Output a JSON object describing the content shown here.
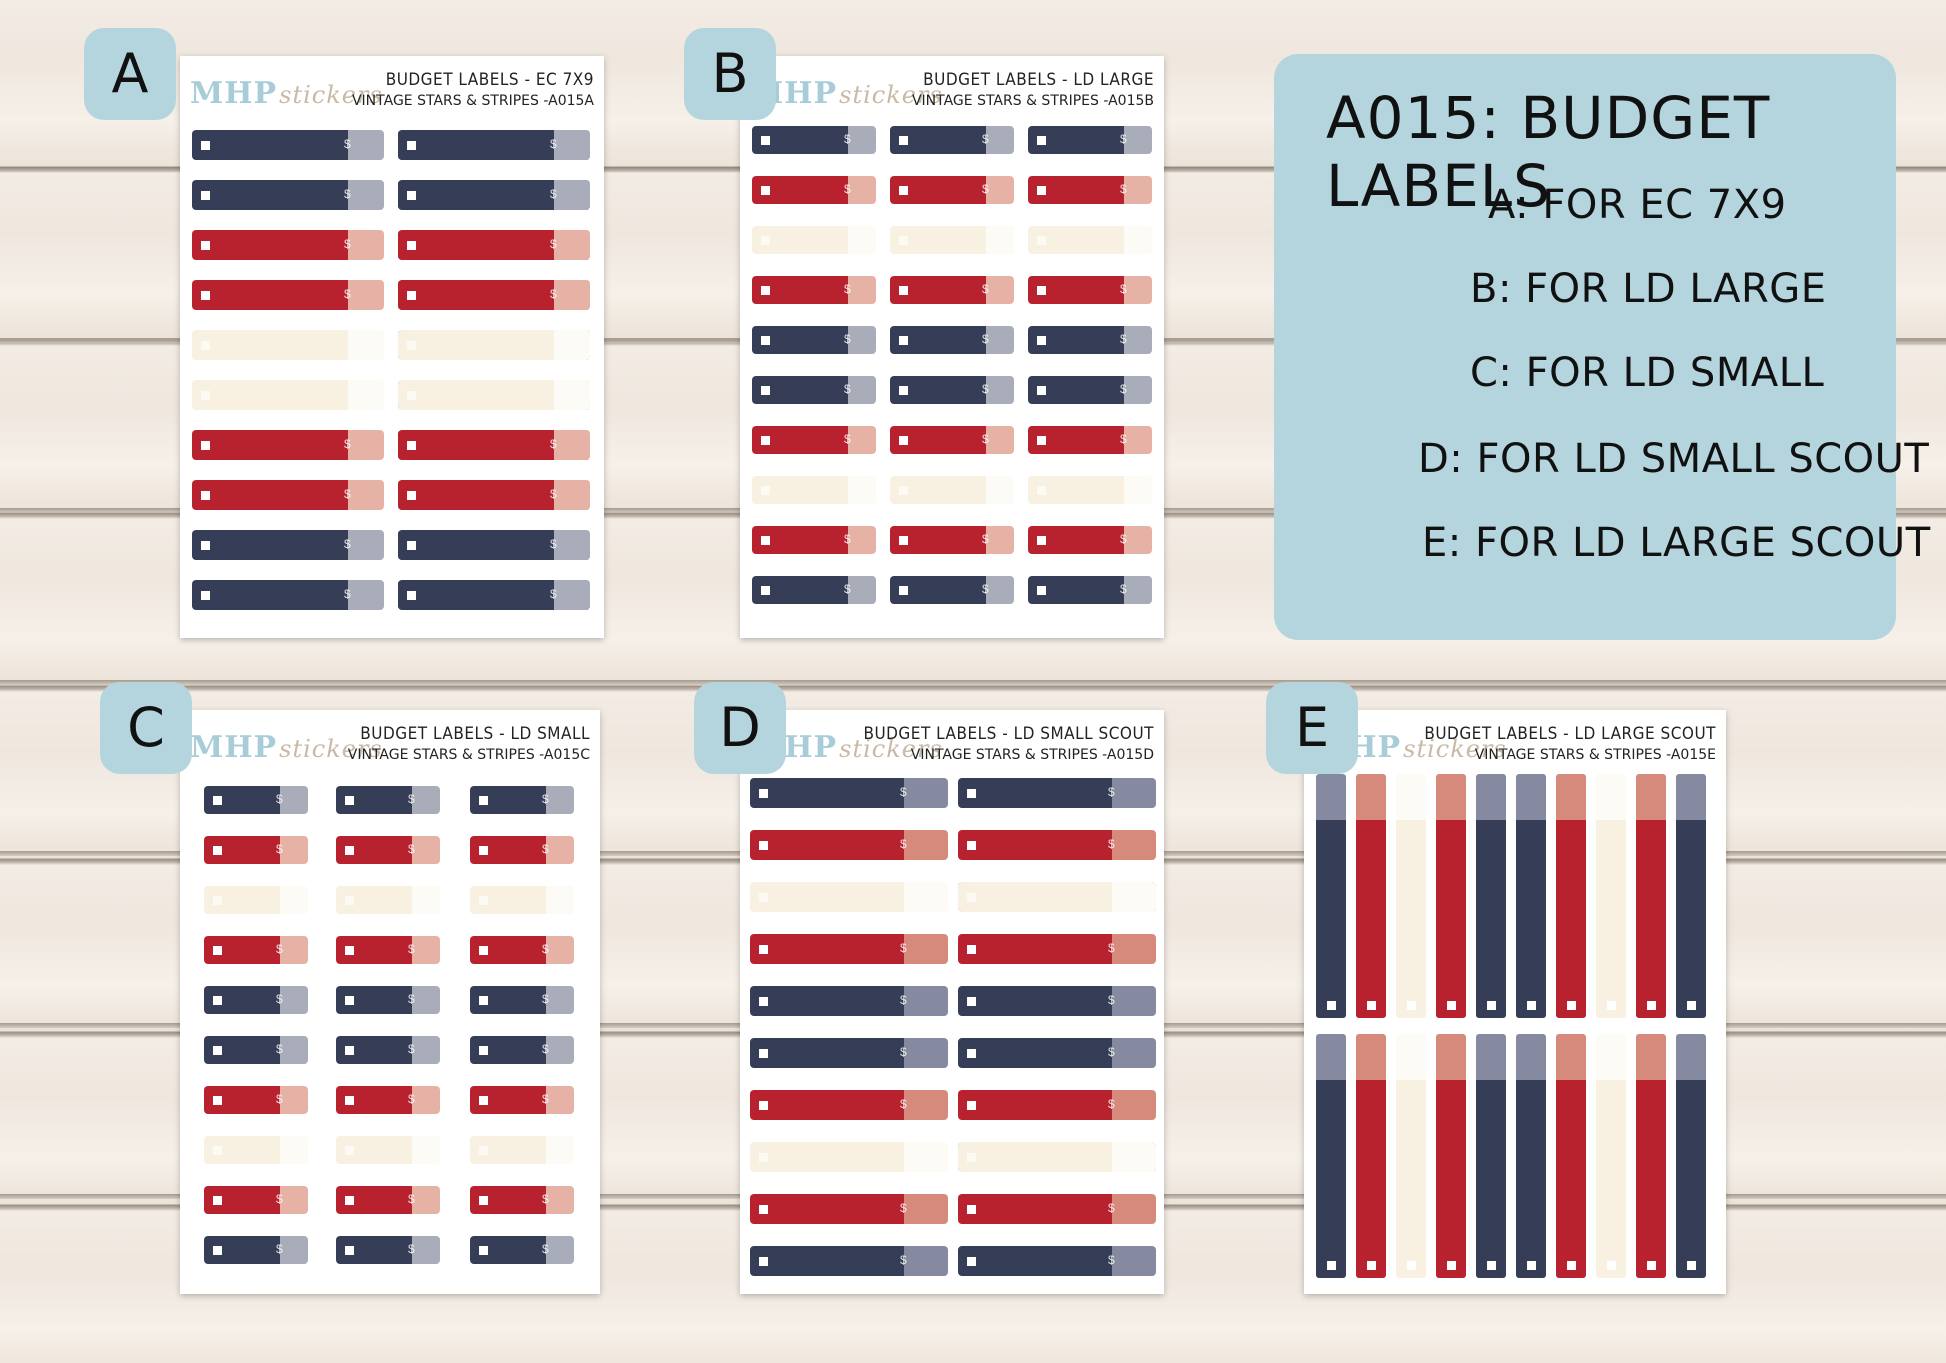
{
  "sheets": [
    {
      "badge": "A",
      "title": "BUDGET LABELS - EC 7X9",
      "subtitle": "VINTAGE STARS & STRIPES -A015A",
      "brand": "MHP",
      "brand_script": "stickers"
    },
    {
      "badge": "B",
      "title": "BUDGET LABELS - LD LARGE",
      "subtitle": "VINTAGE STARS & STRIPES -A015B",
      "brand": "MHP",
      "brand_script": "stickers"
    },
    {
      "badge": "C",
      "title": "BUDGET LABELS - LD SMALL",
      "subtitle": "VINTAGE STARS & STRIPES -A015C",
      "brand": "MHP",
      "brand_script": "stickers"
    },
    {
      "badge": "D",
      "title": "BUDGET LABELS - LD SMALL SCOUT",
      "subtitle": "VINTAGE STARS & STRIPES -A015D",
      "brand": "MHP",
      "brand_script": "stickers"
    },
    {
      "badge": "E",
      "title": "BUDGET LABELS - LD LARGE SCOUT",
      "subtitle": "VINTAGE STARS & STRIPES -A015E",
      "brand": "MHP",
      "brand_script": "stickers"
    }
  ],
  "info": {
    "title": "A015: BUDGET LABELS",
    "lines": [
      "A: FOR EC 7X9",
      "B: FOR LD LARGE",
      "C: FOR LD SMALL",
      "D: FOR LD SMALL SCOUT",
      "E: FOR LD LARGE SCOUT"
    ]
  },
  "label_symbol": "$",
  "colors": {
    "navy": "#363d56",
    "navy_tab": "#a9acb9",
    "red": "#b7222e",
    "red_tab": "#e6b2a5",
    "cream": "#f8f1e2",
    "cream_tab": "#fdfbf6",
    "navy_tab_d": "#868aa0",
    "red_tab_d": "#d68a7b",
    "badge": "#b5d5de"
  },
  "patterns": {
    "A_left": [
      "navy",
      "navy",
      "red",
      "red",
      "cream",
      "cream",
      "red",
      "red",
      "navy",
      "navy"
    ],
    "A_right": [
      "navy*",
      "navy*",
      "red*",
      "red*",
      "cream*",
      "cream*",
      "red*",
      "red*",
      "navy*",
      "navy*"
    ],
    "B": [
      "navy",
      "red",
      "cream",
      "red",
      "navy",
      "navy",
      "red",
      "cream",
      "red",
      "navy"
    ],
    "C": [
      "navy",
      "red",
      "cream",
      "red",
      "navy",
      "navy",
      "red",
      "cream",
      "red",
      "navy"
    ],
    "D_left": [
      "navy",
      "red",
      "cream",
      "red",
      "navy",
      "navy",
      "red",
      "cream",
      "red",
      "navy"
    ],
    "D_right": [
      "navy",
      "red",
      "cream*",
      "red",
      "navy",
      "navy",
      "red",
      "cream*",
      "red",
      "navy"
    ],
    "E": [
      "navy",
      "red",
      "cream",
      "red",
      "navy",
      "navy",
      "red",
      "cream",
      "red",
      "navy"
    ]
  }
}
